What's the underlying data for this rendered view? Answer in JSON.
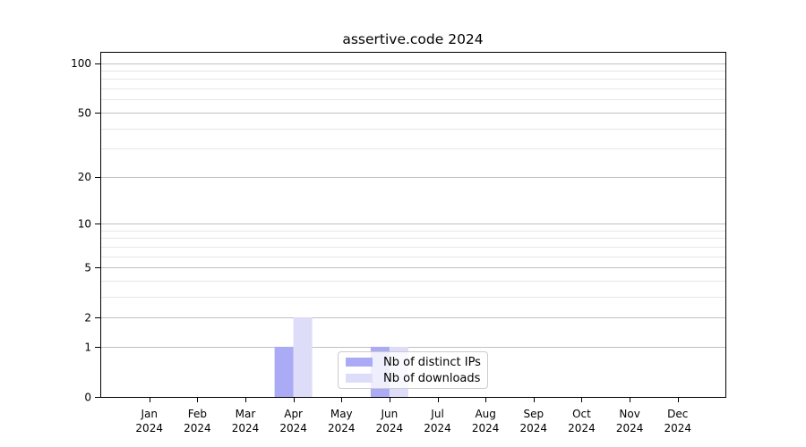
{
  "chart_data": {
    "type": "bar",
    "title": "assertive.code 2024",
    "categories": [
      "Jan",
      "Feb",
      "Mar",
      "Apr",
      "May",
      "Jun",
      "Jul",
      "Aug",
      "Sep",
      "Oct",
      "Nov",
      "Dec"
    ],
    "year_label": "2024",
    "series": [
      {
        "name": "Nb of distinct IPs",
        "color": "#aaaaf5",
        "values": [
          0,
          0,
          0,
          1,
          0,
          1,
          0,
          0,
          0,
          0,
          0,
          0
        ]
      },
      {
        "name": "Nb of downloads",
        "color": "#ddddf9",
        "values": [
          0,
          0,
          0,
          2,
          0,
          1,
          0,
          0,
          0,
          0,
          0,
          0
        ]
      }
    ],
    "xlabel": "",
    "ylabel": "",
    "yscale": "log1p",
    "ylim": [
      0,
      117
    ],
    "yticks": [
      0,
      1,
      2,
      5,
      10,
      20,
      50,
      100
    ],
    "yticks_minor": [
      3,
      4,
      6,
      7,
      8,
      9,
      30,
      40,
      60,
      70,
      80,
      90
    ],
    "grid": true,
    "legend_position": "lower-center",
    "colors": {
      "axis": "#000000",
      "grid_major": "#c0c0c0",
      "grid_minor": "#e7e7e7",
      "background": "#ffffff",
      "legend_border": "#cccccc",
      "text": "#000000"
    }
  }
}
